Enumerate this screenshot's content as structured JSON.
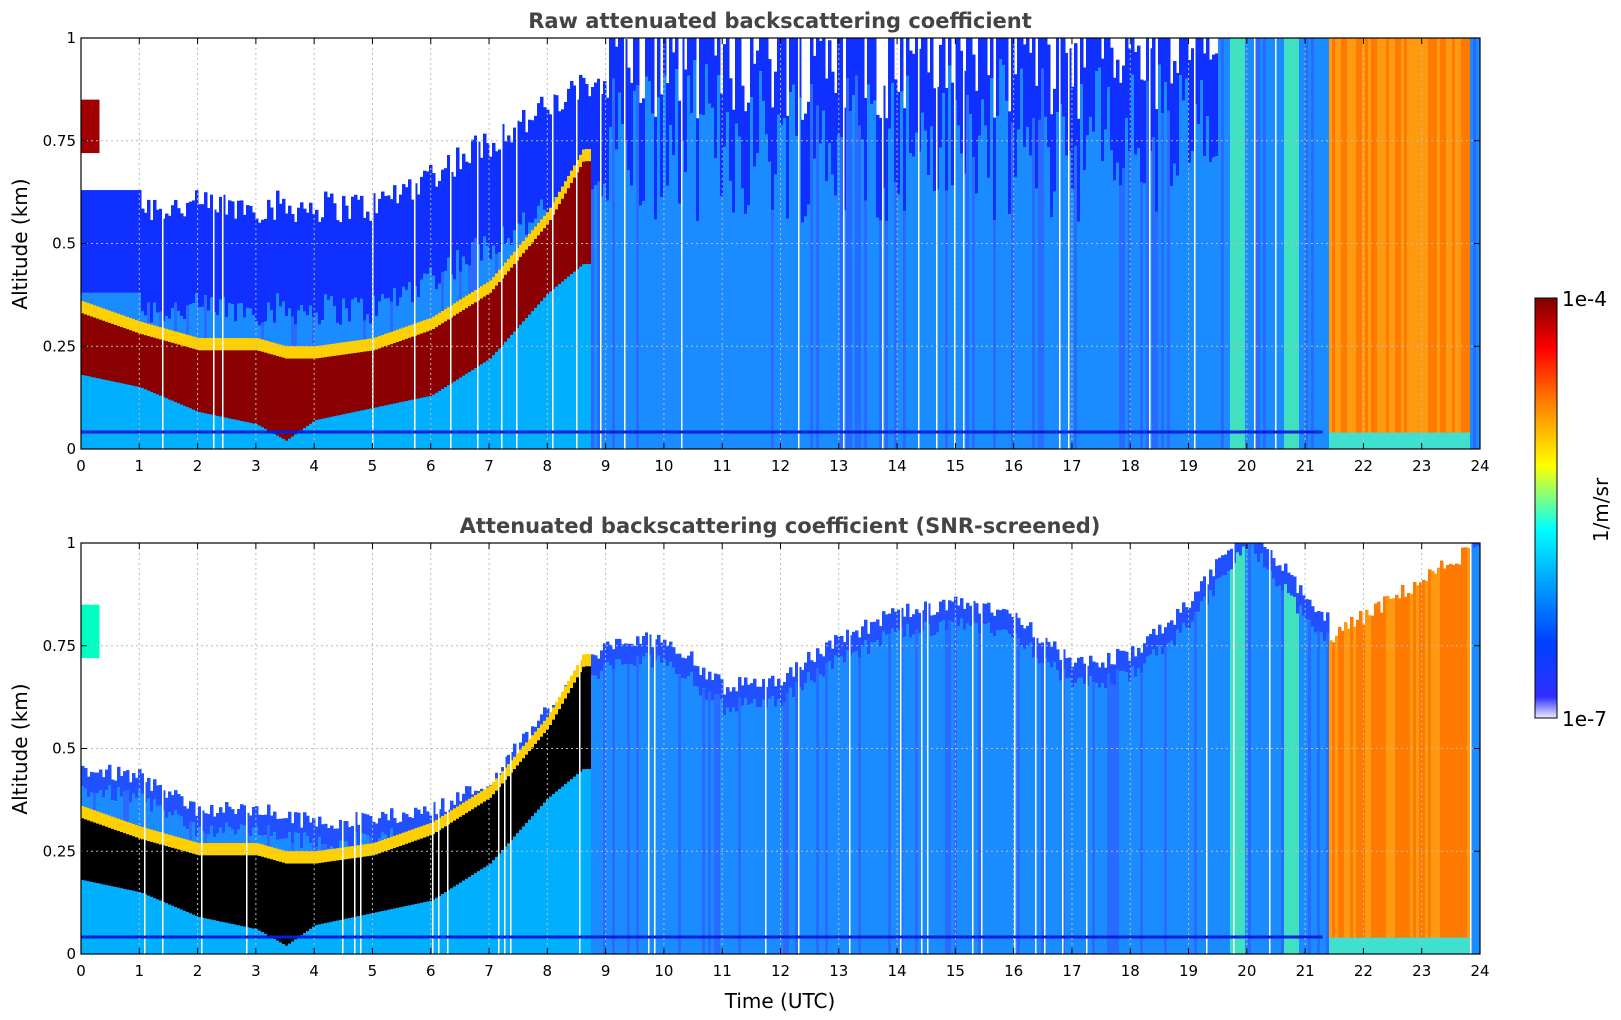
{
  "chart_data": [
    {
      "type": "heatmap",
      "title": "Raw attenuated backscattering coefficient",
      "ylabel": "Altitude (km)",
      "xlabel": "",
      "xlim": [
        0,
        24
      ],
      "ylim": [
        0,
        1
      ],
      "x_ticks": [
        0,
        1,
        2,
        3,
        4,
        5,
        6,
        7,
        8,
        9,
        10,
        11,
        12,
        13,
        14,
        15,
        16,
        17,
        18,
        19,
        20,
        21,
        22,
        23,
        24
      ],
      "y_ticks": [
        0,
        0.25,
        0.5,
        0.75,
        1
      ],
      "y_tick_labels": [
        "0",
        "0.25",
        "0.5",
        "0.75",
        "1"
      ],
      "grid": true,
      "color_scale": "log",
      "layers": {
        "surface_layer_top_km": 0.05,
        "aerosol_layer": [
          {
            "time": 0.0,
            "base": 0.18,
            "top": 0.33
          },
          {
            "time": 1.0,
            "base": 0.15,
            "top": 0.28
          },
          {
            "time": 2.0,
            "base": 0.09,
            "top": 0.24
          },
          {
            "time": 3.0,
            "base": 0.06,
            "top": 0.24
          },
          {
            "time": 3.5,
            "base": 0.02,
            "top": 0.22
          },
          {
            "time": 4.0,
            "base": 0.07,
            "top": 0.22
          },
          {
            "time": 5.0,
            "base": 0.1,
            "top": 0.24
          },
          {
            "time": 6.0,
            "base": 0.13,
            "top": 0.29
          },
          {
            "time": 7.0,
            "base": 0.22,
            "top": 0.38
          },
          {
            "time": 8.0,
            "base": 0.38,
            "top": 0.55
          },
          {
            "time": 8.6,
            "base": 0.45,
            "top": 0.7
          }
        ],
        "elevated_cloud": {
          "time_start": 0.0,
          "time_end": 0.3,
          "base": 0.72,
          "top": 0.85
        },
        "dense_signal_band": {
          "time_start": 21.4,
          "time_end": 23.8
        }
      }
    },
    {
      "type": "heatmap",
      "title": "Attenuated backscattering coefficient (SNR-screened)",
      "ylabel": "Altitude (km)",
      "xlabel": "Time (UTC)",
      "xlim": [
        0,
        24
      ],
      "ylim": [
        0,
        1
      ],
      "x_ticks": [
        0,
        1,
        2,
        3,
        4,
        5,
        6,
        7,
        8,
        9,
        10,
        11,
        12,
        13,
        14,
        15,
        16,
        17,
        18,
        19,
        20,
        21,
        22,
        23,
        24
      ],
      "y_ticks": [
        0,
        0.25,
        0.5,
        0.75,
        1
      ],
      "y_tick_labels": [
        "0",
        "0.25",
        "0.5",
        "0.75",
        "1"
      ],
      "grid": true,
      "color_scale": "log",
      "signal_top_km": [
        {
          "time": 0.0,
          "value": 0.4
        },
        {
          "time": 1.0,
          "value": 0.38
        },
        {
          "time": 2.0,
          "value": 0.3
        },
        {
          "time": 3.0,
          "value": 0.3
        },
        {
          "time": 4.0,
          "value": 0.27
        },
        {
          "time": 5.0,
          "value": 0.28
        },
        {
          "time": 6.0,
          "value": 0.3
        },
        {
          "time": 7.0,
          "value": 0.37
        },
        {
          "time": 8.0,
          "value": 0.55
        },
        {
          "time": 9.0,
          "value": 0.7
        },
        {
          "time": 10.0,
          "value": 0.72
        },
        {
          "time": 11.0,
          "value": 0.6
        },
        {
          "time": 12.0,
          "value": 0.62
        },
        {
          "time": 13.0,
          "value": 0.72
        },
        {
          "time": 14.0,
          "value": 0.78
        },
        {
          "time": 15.0,
          "value": 0.8
        },
        {
          "time": 16.0,
          "value": 0.78
        },
        {
          "time": 17.0,
          "value": 0.65
        },
        {
          "time": 18.0,
          "value": 0.68
        },
        {
          "time": 19.0,
          "value": 0.8
        },
        {
          "time": 20.0,
          "value": 1.0
        },
        {
          "time": 21.3,
          "value": 0.76
        },
        {
          "time": 24.0,
          "value": 1.0
        }
      ]
    }
  ],
  "colorbar": {
    "label": "1/m/sr",
    "max_label": "1e-4",
    "min_label": "1e-7",
    "scale": "log",
    "colors": [
      "#ebebff",
      "#0000ff",
      "#00a0ff",
      "#00ffff",
      "#ffff00",
      "#ff8000",
      "#ff0000",
      "#800000"
    ]
  }
}
